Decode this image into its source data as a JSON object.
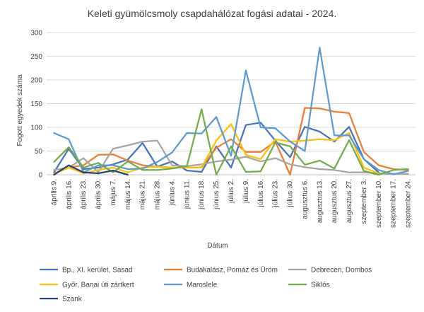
{
  "chart_data": {
    "type": "line",
    "title": "Keleti gyümölcsmoly csapdahálózat fogási adatai - 2024.",
    "xlabel": "Dátum",
    "ylabel": "Fogott egyedek száma",
    "ylim": [
      0,
      300
    ],
    "yticks": [
      0,
      50,
      100,
      150,
      200,
      250,
      300
    ],
    "grid": true,
    "legend_position": "bottom",
    "categories": [
      "április 9.",
      "április 16.",
      "április 23.",
      "április 30.",
      "május 7.",
      "május 14.",
      "május 21.",
      "május 28.",
      "június 4.",
      "június 11.",
      "június 18.",
      "június 25.",
      "július 2.",
      "július 9.",
      "július 16.",
      "július 23.",
      "július 30.",
      "augusztus 6.",
      "augusztus 13.",
      "augusztus 20.",
      "augusztus 27.",
      "szeptember 3.",
      "szeptember 10.",
      "szeptember 17.",
      "szeptember 24."
    ],
    "series": [
      {
        "name": "Bp., XI. kerület, Sasad",
        "color": "#4472c4",
        "values": [
          5,
          55,
          12,
          15,
          22,
          32,
          67,
          17,
          28,
          9,
          6,
          60,
          15,
          105,
          110,
          72,
          37,
          101,
          91,
          70,
          101,
          33,
          5,
          null,
          null
        ]
      },
      {
        "name": "Budakalász, Pomáz és Üröm",
        "color": "#ed7d31",
        "values": [
          3,
          15,
          20,
          42,
          43,
          30,
          20,
          17,
          15,
          15,
          15,
          57,
          75,
          48,
          48,
          70,
          0,
          141,
          140,
          133,
          130,
          48,
          20,
          12,
          10
        ]
      },
      {
        "name": "Debrecen, Dombos",
        "color": "#a5a5a5",
        "values": [
          10,
          15,
          35,
          5,
          55,
          62,
          70,
          72,
          20,
          18,
          22,
          28,
          32,
          38,
          28,
          35,
          22,
          16,
          12,
          10,
          5,
          5,
          3,
          2,
          2
        ]
      },
      {
        "name": "Győr, Banai úti zártkert",
        "color": "#ffc000",
        "values": [
          2,
          15,
          3,
          10,
          15,
          5,
          15,
          17,
          15,
          15,
          15,
          72,
          107,
          42,
          33,
          75,
          70,
          72,
          75,
          73,
          88,
          15,
          3,
          null,
          null
        ]
      },
      {
        "name": "Maroslele",
        "color": "#5b9bd5",
        "values": [
          88,
          75,
          5,
          20,
          20,
          12,
          13,
          27,
          47,
          88,
          87,
          122,
          40,
          220,
          100,
          98,
          70,
          50,
          268,
          83,
          83,
          33,
          10,
          1,
          8
        ]
      },
      {
        "name": "Siklós",
        "color": "#70ad47",
        "values": [
          27,
          58,
          15,
          25,
          5,
          28,
          10,
          10,
          13,
          18,
          138,
          0,
          60,
          6,
          7,
          68,
          60,
          21,
          30,
          13,
          73,
          8,
          0,
          10,
          12
        ]
      },
      {
        "name": "Szank",
        "color": "#264478",
        "values": [
          0,
          20,
          5,
          3,
          9,
          0,
          null,
          null,
          null,
          null,
          null,
          null,
          null,
          null,
          null,
          null,
          null,
          null,
          null,
          null,
          null,
          null,
          null,
          null,
          null
        ]
      }
    ]
  }
}
